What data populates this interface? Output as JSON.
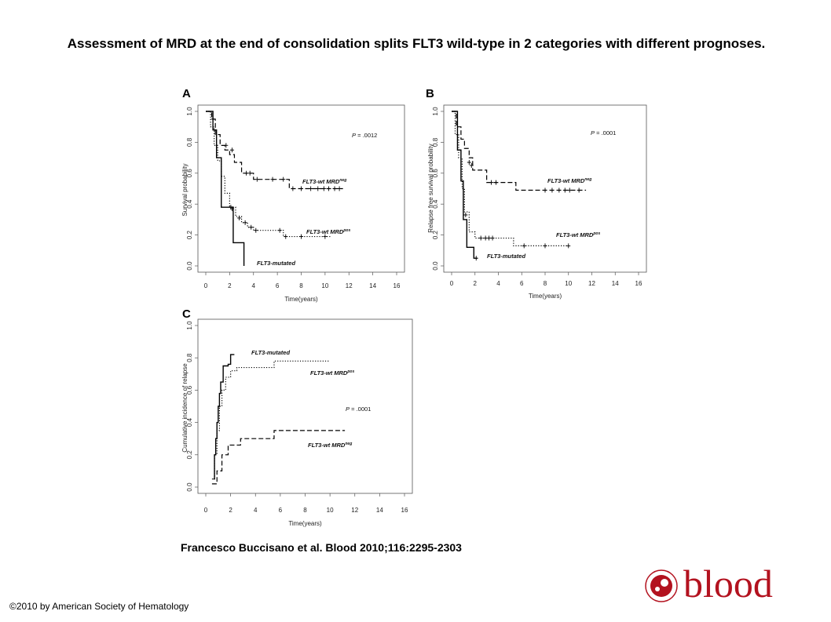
{
  "header": {
    "title": "Assessment of MRD at the end of consolidation splits FLT3 wild-type in 2 categories with different prognoses."
  },
  "footer": {
    "citation": "Francesco Buccisano et al. Blood 2010;116:2295-2303",
    "copyright": "©2010 by American Society of Hematology",
    "logo_text": "blood"
  },
  "colors": {
    "ink": "#000000",
    "logo_red": "#b3121f"
  },
  "chart_data": [
    {
      "panel": "A",
      "type": "line",
      "xlabel": "Time(years)",
      "ylabel": "Survival probability",
      "xlim": [
        0,
        16
      ],
      "ylim": [
        0,
        1
      ],
      "x_ticks": [
        "0",
        "2",
        "4",
        "6",
        "8",
        "10",
        "12",
        "14",
        "16"
      ],
      "y_ticks": [
        "0.0",
        "0.2",
        "0.4",
        "0.6",
        "0.8",
        "1.0"
      ],
      "p_value": ".0012",
      "series": [
        {
          "name": "FLT3-wt MRDneg",
          "label": "FLT3-wt MRD",
          "sup": "neg",
          "style": "dashed",
          "x": [
            0,
            0.5,
            0.8,
            1.2,
            1.6,
            2.0,
            2.4,
            3.0,
            4.0,
            7.0,
            11.5
          ],
          "y": [
            1,
            0.95,
            0.85,
            0.78,
            0.75,
            0.72,
            0.67,
            0.6,
            0.56,
            0.5,
            0.5
          ],
          "censored": [
            [
              1.7,
              0.78
            ],
            [
              2.2,
              0.75
            ],
            [
              3.4,
              0.6
            ],
            [
              3.7,
              0.6
            ],
            [
              4.3,
              0.56
            ],
            [
              5.6,
              0.56
            ],
            [
              6.5,
              0.56
            ],
            [
              7.3,
              0.5
            ],
            [
              8.0,
              0.5
            ],
            [
              8.8,
              0.5
            ],
            [
              9.4,
              0.5
            ],
            [
              9.9,
              0.5
            ],
            [
              10.3,
              0.5
            ],
            [
              10.8,
              0.5
            ],
            [
              11.2,
              0.5
            ]
          ]
        },
        {
          "name": "FLT3-wt MRDpos",
          "label": "FLT3-wt MRD",
          "sup": "pos",
          "style": "dotted",
          "x": [
            0,
            0.4,
            0.7,
            1.0,
            1.3,
            1.6,
            2.0,
            2.5,
            3.0,
            3.5,
            4.0,
            6.5,
            10.5
          ],
          "y": [
            1,
            0.9,
            0.78,
            0.68,
            0.58,
            0.47,
            0.38,
            0.32,
            0.28,
            0.25,
            0.23,
            0.19,
            0.19
          ],
          "censored": [
            [
              2.2,
              0.37
            ],
            [
              2.8,
              0.31
            ],
            [
              3.3,
              0.28
            ],
            [
              3.8,
              0.25
            ],
            [
              4.2,
              0.23
            ],
            [
              6.2,
              0.23
            ],
            [
              6.7,
              0.19
            ],
            [
              8.0,
              0.19
            ],
            [
              10.0,
              0.19
            ]
          ]
        },
        {
          "name": "FLT3-mutated",
          "label": "FLT3-mutated",
          "sup": "",
          "style": "solid",
          "x": [
            0,
            0.6,
            0.9,
            1.3,
            2.0,
            2.3,
            3.1,
            3.2
          ],
          "y": [
            1,
            0.88,
            0.7,
            0.38,
            0.38,
            0.15,
            0.15,
            0
          ],
          "censored": [
            [
              0.6,
              0.95
            ],
            [
              2.1,
              0.38
            ]
          ]
        }
      ]
    },
    {
      "panel": "B",
      "type": "line",
      "xlabel": "Time(years)",
      "ylabel": "Relapse free survival probability",
      "xlim": [
        0,
        16
      ],
      "ylim": [
        0,
        1
      ],
      "x_ticks": [
        "0",
        "2",
        "4",
        "6",
        "8",
        "10",
        "12",
        "14",
        "16"
      ],
      "y_ticks": [
        "0.0",
        "0.2",
        "0.4",
        "0.6",
        "0.8",
        "1.0"
      ],
      "p_value": ".0001",
      "series": [
        {
          "name": "FLT3-wt MRDneg",
          "label": "FLT3-wt MRD",
          "sup": "neg",
          "style": "dashed",
          "x": [
            0,
            0.4,
            0.8,
            1.1,
            1.5,
            1.8,
            3.0,
            5.5,
            11.5
          ],
          "y": [
            1,
            0.9,
            0.82,
            0.76,
            0.7,
            0.62,
            0.54,
            0.49,
            0.49
          ],
          "censored": [
            [
              1.5,
              0.67
            ],
            [
              1.7,
              0.65
            ],
            [
              3.4,
              0.54
            ],
            [
              3.8,
              0.54
            ],
            [
              8.0,
              0.49
            ],
            [
              8.6,
              0.49
            ],
            [
              9.2,
              0.49
            ],
            [
              9.7,
              0.49
            ],
            [
              10.1,
              0.49
            ],
            [
              10.9,
              0.49
            ]
          ]
        },
        {
          "name": "FLT3-wt MRDpos",
          "label": "FLT3-wt MRD",
          "sup": "pos",
          "style": "dotted",
          "x": [
            0,
            0.3,
            0.6,
            0.9,
            1.1,
            1.5,
            2.0,
            5.3,
            10.0
          ],
          "y": [
            1,
            0.85,
            0.7,
            0.5,
            0.35,
            0.22,
            0.18,
            0.13,
            0.13
          ],
          "censored": [
            [
              1.2,
              0.33
            ],
            [
              2.5,
              0.18
            ],
            [
              2.9,
              0.18
            ],
            [
              3.2,
              0.18
            ],
            [
              3.5,
              0.18
            ],
            [
              6.2,
              0.13
            ],
            [
              8.0,
              0.13
            ],
            [
              10.0,
              0.13
            ]
          ]
        },
        {
          "name": "FLT3-mutated",
          "label": "FLT3-mutated",
          "sup": "",
          "style": "solid",
          "x": [
            0,
            0.5,
            0.8,
            1.0,
            1.3,
            1.9,
            2.2
          ],
          "y": [
            1,
            0.75,
            0.55,
            0.3,
            0.12,
            0.05,
            0.05
          ],
          "censored": [
            [
              2.1,
              0.05
            ]
          ]
        }
      ]
    },
    {
      "panel": "C",
      "type": "line",
      "xlabel": "Time(years)",
      "ylabel": "Cumulative incidence of relapse",
      "xlim": [
        0,
        16
      ],
      "ylim": [
        0,
        1
      ],
      "x_ticks": [
        "0",
        "2",
        "4",
        "6",
        "8",
        "10",
        "12",
        "14",
        "16"
      ],
      "y_ticks": [
        "0.0",
        "0.2",
        "0.4",
        "0.6",
        "0.8",
        "1.0"
      ],
      "p_value": ".0001",
      "series": [
        {
          "name": "FLT3-mutated",
          "label": "FLT3-mutated",
          "sup": "",
          "style": "solid",
          "x": [
            0.6,
            0.7,
            0.8,
            0.9,
            1.0,
            1.1,
            1.2,
            1.4,
            1.8,
            2.0,
            2.3
          ],
          "y": [
            0.05,
            0.2,
            0.3,
            0.4,
            0.5,
            0.58,
            0.65,
            0.75,
            0.76,
            0.82,
            0.82
          ],
          "censored": []
        },
        {
          "name": "FLT3-wt MRDpos",
          "label": "FLT3-wt MRD",
          "sup": "pos",
          "style": "dotted",
          "x": [
            0.5,
            0.7,
            0.9,
            1.1,
            1.3,
            1.6,
            2.0,
            2.5,
            5.5,
            10.0
          ],
          "y": [
            0.05,
            0.2,
            0.35,
            0.5,
            0.6,
            0.68,
            0.72,
            0.74,
            0.78,
            0.78
          ],
          "censored": []
        },
        {
          "name": "FLT3-wt MRDneg",
          "label": "FLT3-wt MRD",
          "sup": "neg",
          "style": "dashed",
          "x": [
            0.5,
            0.9,
            1.3,
            1.8,
            2.8,
            5.5,
            11.2
          ],
          "y": [
            0.02,
            0.1,
            0.2,
            0.26,
            0.3,
            0.35,
            0.35
          ],
          "censored": []
        }
      ]
    }
  ]
}
